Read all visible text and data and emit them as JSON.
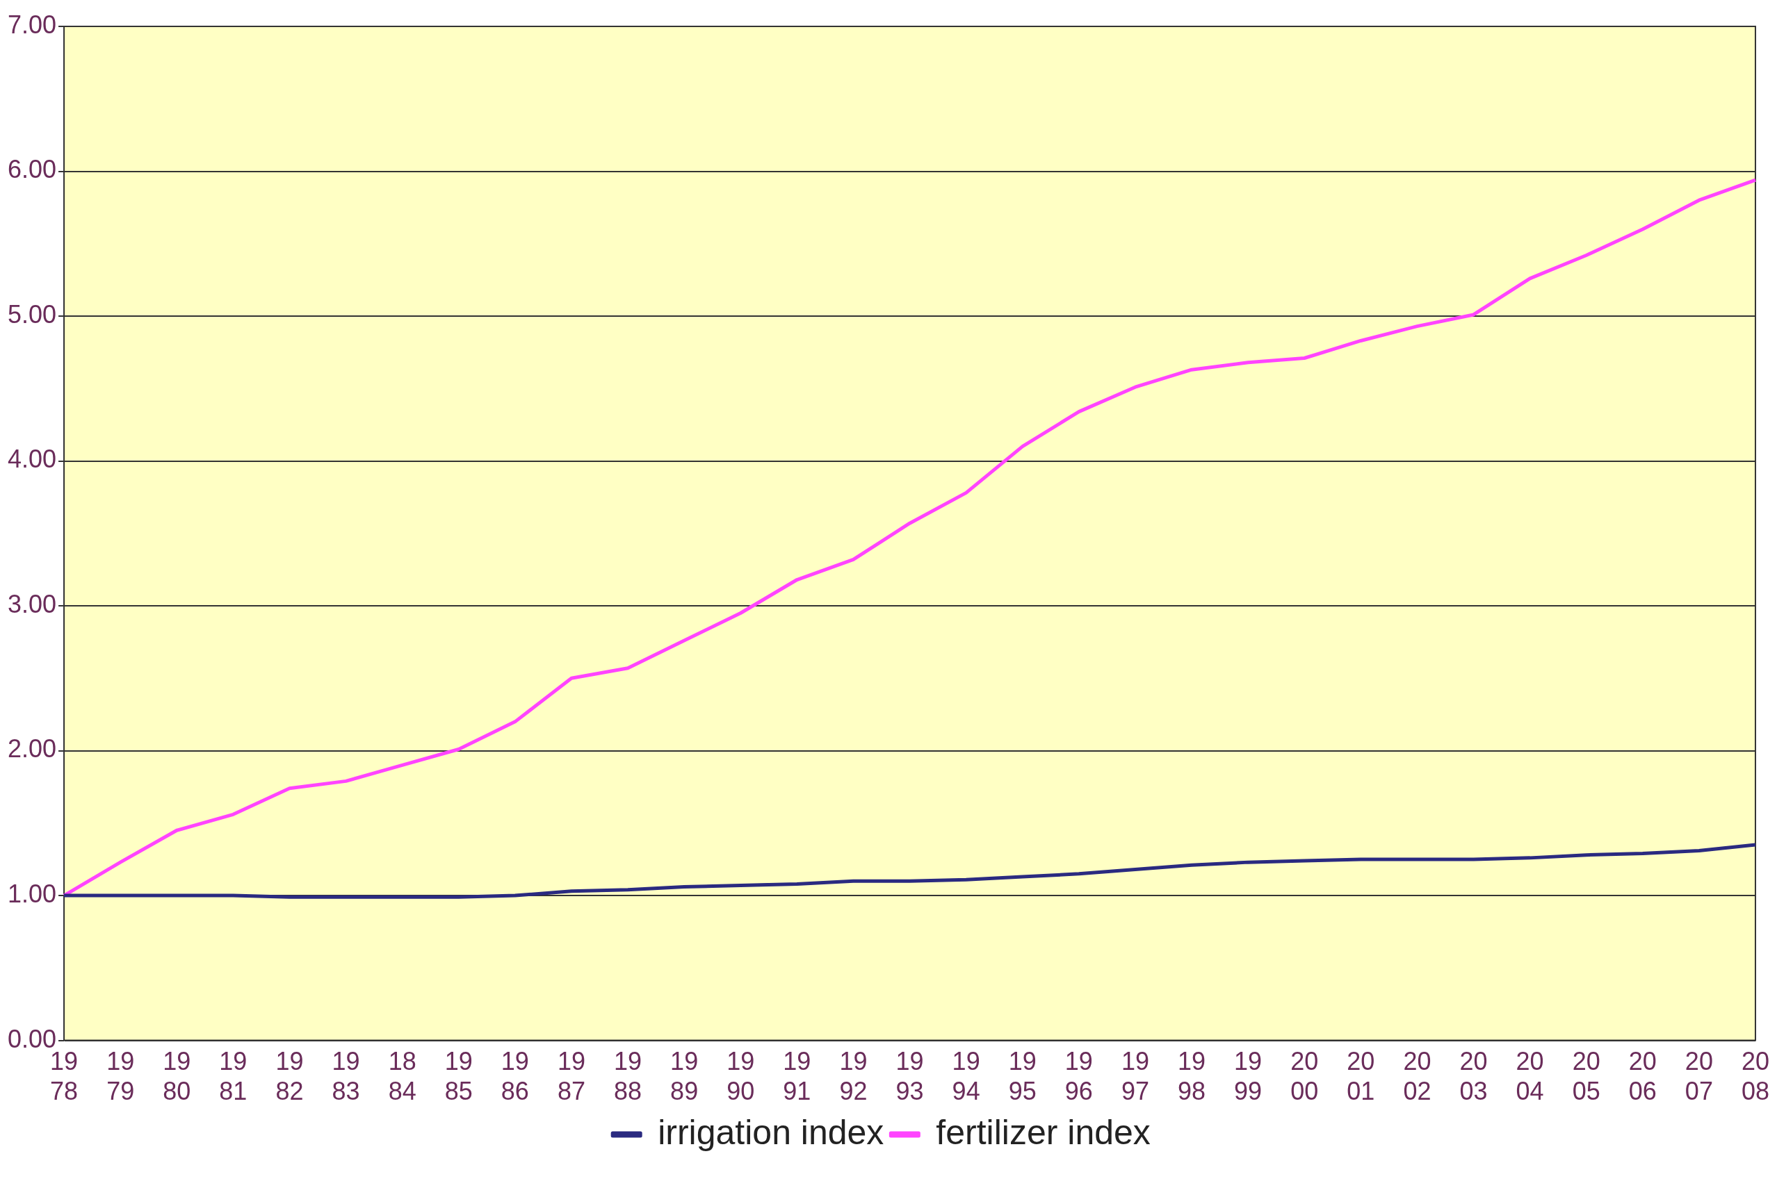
{
  "chart_data": {
    "type": "line",
    "categories": [
      "1978",
      "1979",
      "1980",
      "1981",
      "1982",
      "1983",
      "1884",
      "1985",
      "1986",
      "1987",
      "1988",
      "1989",
      "1990",
      "1991",
      "1992",
      "1993",
      "1994",
      "1995",
      "1996",
      "1997",
      "1998",
      "1999",
      "2000",
      "2001",
      "2002",
      "2003",
      "2004",
      "2005",
      "2006",
      "2007",
      "2008"
    ],
    "series": [
      {
        "name": "irrigation index",
        "color": "#2a2a80",
        "values": [
          1.0,
          1.0,
          1.0,
          1.0,
          0.99,
          0.99,
          0.99,
          0.99,
          1.0,
          1.03,
          1.04,
          1.06,
          1.07,
          1.08,
          1.1,
          1.1,
          1.11,
          1.13,
          1.15,
          1.18,
          1.21,
          1.23,
          1.24,
          1.25,
          1.25,
          1.25,
          1.26,
          1.28,
          1.29,
          1.31,
          1.35
        ]
      },
      {
        "name": "fertilizer index",
        "color": "#ff44ff",
        "values": [
          1.0,
          1.23,
          1.45,
          1.56,
          1.74,
          1.79,
          1.9,
          2.01,
          2.2,
          2.5,
          2.57,
          2.76,
          2.95,
          3.18,
          3.32,
          3.57,
          3.78,
          4.1,
          4.34,
          4.51,
          4.63,
          4.68,
          4.71,
          4.83,
          4.93,
          5.01,
          5.26,
          5.42,
          5.6,
          5.8,
          5.94
        ]
      }
    ],
    "ylim": [
      0,
      7
    ],
    "yticks": [
      {
        "value": 0,
        "label": "0.00"
      },
      {
        "value": 1,
        "label": "1.00"
      },
      {
        "value": 2,
        "label": "2.00"
      },
      {
        "value": 3,
        "label": "3.00"
      },
      {
        "value": 4,
        "label": "4.00"
      },
      {
        "value": 5,
        "label": "5.00"
      },
      {
        "value": 6,
        "label": "6.00"
      },
      {
        "value": 7,
        "label": "7.00"
      }
    ],
    "grid": "y",
    "legend": "bottom",
    "marker": "none",
    "line_style": "solid"
  }
}
